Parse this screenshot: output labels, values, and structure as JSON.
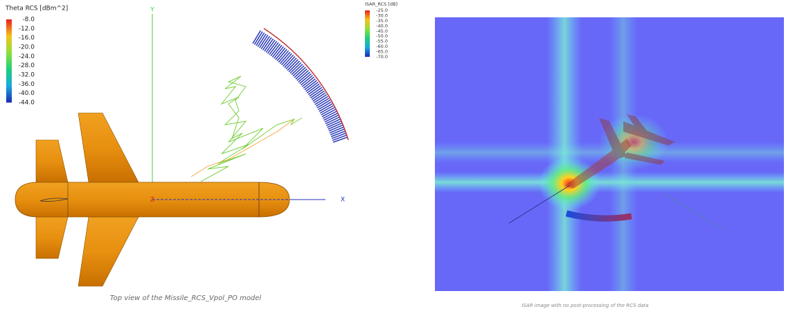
{
  "left": {
    "colorbar": {
      "title": "Theta RCS [dBm^2]",
      "labels": [
        "-8.0",
        "-12.0",
        "-16.0",
        "-20.0",
        "-24.0",
        "-28.0",
        "-32.0",
        "-36.0",
        "-40.0",
        "-44.0"
      ]
    },
    "axes": {
      "y": "Y",
      "z": "Z",
      "x": "X"
    },
    "caption": "Top view of the Missile_RCS_Vpol_PO model"
  },
  "right": {
    "colorbar": {
      "title": "ISAR_RCS [dB]",
      "labels": [
        "-25.0",
        "-30.0",
        "-35.0",
        "-40.0",
        "-45.0",
        "-50.0",
        "-55.0",
        "-60.0",
        "-65.0",
        "-70.0"
      ]
    },
    "caption": "ISAR image with no post-processing of the RCS data"
  }
}
